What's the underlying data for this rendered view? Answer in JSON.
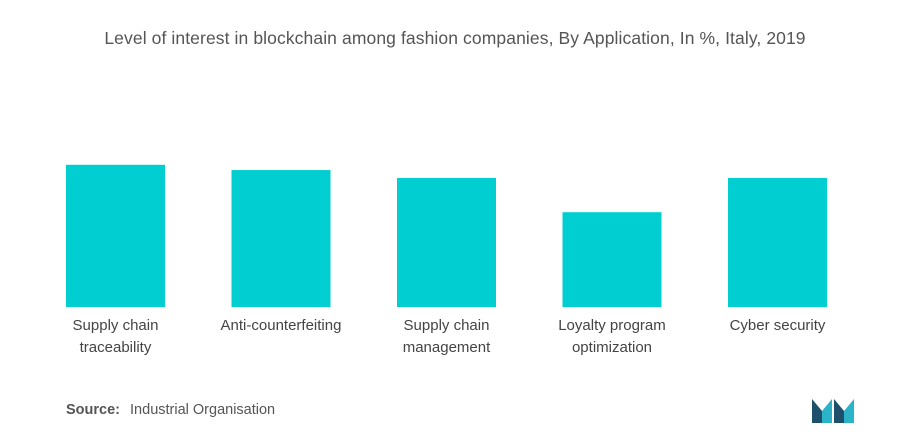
{
  "chart_data": {
    "type": "bar",
    "title": "Level of interest in blockchain among fashion companies, By Application, In %, Italy, 2019",
    "categories": [
      [
        "Supply chain",
        "traceability"
      ],
      [
        "Anti-counterfeiting"
      ],
      [
        "Supply chain",
        "management"
      ],
      [
        "Loyalty program",
        "optimization"
      ],
      [
        "Cyber security"
      ]
    ],
    "values": [
      54,
      52,
      49,
      36,
      49
    ],
    "ylim": [
      0,
      60
    ],
    "bar_color": "#00CED1",
    "grid": false,
    "legend": "none"
  },
  "source": {
    "label": "Source:",
    "text": "Industrial Organisation"
  },
  "logo": {
    "icon": "mordor-intelligence-logo",
    "colors": [
      "#1e4f6b",
      "#2ab3c9"
    ]
  }
}
